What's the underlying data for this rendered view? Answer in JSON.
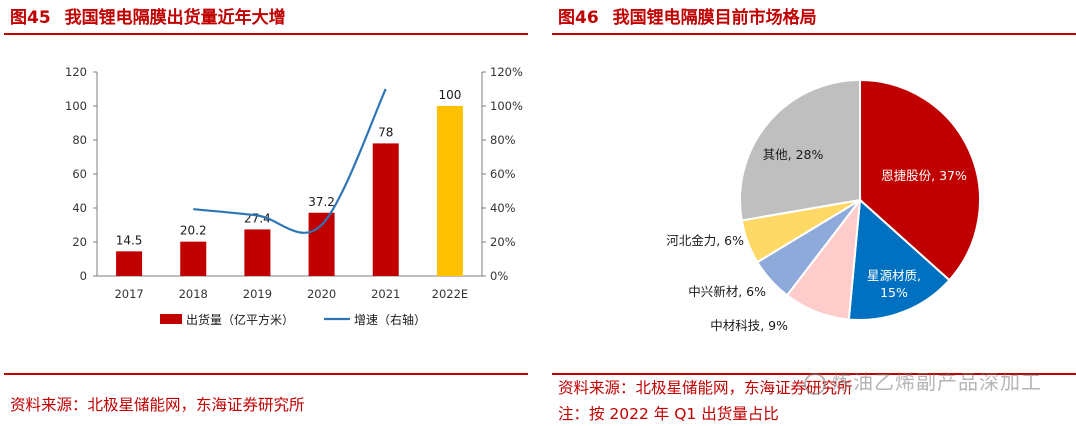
{
  "left_panel": {
    "fig_num": "图45",
    "fig_title": "我国锂电隔膜出货量近年大增",
    "source": "资料来源：北极星储能网，东海证券研究所"
  },
  "right_panel": {
    "fig_num": "图46",
    "fig_title": "我国锂电隔膜目前市场格局",
    "source": "资料来源：北极星储能网，东海证券研究所",
    "note": "注：按 2022 年 Q1 出货量占比"
  },
  "watermark": "炼油乙烯副产品深加工",
  "colors": {
    "accent": "#c00000",
    "bar": "#c00000",
    "bar_forecast": "#ffc000",
    "line": "#2e75b6"
  },
  "chart_data": [
    {
      "type": "bar",
      "categories": [
        "2017",
        "2018",
        "2019",
        "2020",
        "2021",
        "2022E"
      ],
      "series": [
        {
          "name": "出货量（亿平方米）",
          "type": "bar",
          "axis": "left",
          "values": [
            14.5,
            20.2,
            27.4,
            37.2,
            78,
            100
          ],
          "labels": [
            "14.5",
            "20.2",
            "27.4",
            "37.2",
            "78",
            "100"
          ]
        },
        {
          "name": "增速（右轴）",
          "type": "line",
          "axis": "right",
          "values": [
            null,
            39.3,
            35.6,
            30.0,
            110.0,
            null
          ]
        }
      ],
      "y_left": {
        "min": 0,
        "max": 120,
        "ticks": [
          "0",
          "20",
          "40",
          "60",
          "80",
          "100",
          "120"
        ]
      },
      "y_right": {
        "min": 0,
        "max": 120,
        "ticks": [
          "0%",
          "20%",
          "40%",
          "60%",
          "80%",
          "100%",
          "120%"
        ]
      },
      "legend_position": "bottom",
      "grid": false
    },
    {
      "type": "pie",
      "slices": [
        {
          "label": "恩捷股份",
          "value": 37,
          "text": "恩捷股份, 37%",
          "color": "#c00000"
        },
        {
          "label": "星源材质",
          "value": 15,
          "text": "星源材质,\n15%",
          "color": "#0070c0"
        },
        {
          "label": "中材科技",
          "value": 9,
          "text": "中材科技, 9%",
          "color": "#ffcccc"
        },
        {
          "label": "中兴新材",
          "value": 6,
          "text": "中兴新材, 6%",
          "color": "#8eaadb"
        },
        {
          "label": "河北金力",
          "value": 6,
          "text": "河北金力, 6%",
          "color": "#ffd966"
        },
        {
          "label": "其他",
          "value": 28,
          "text": "其他, 28%",
          "color": "#bfbfbf"
        }
      ],
      "legend_position": "none"
    }
  ]
}
